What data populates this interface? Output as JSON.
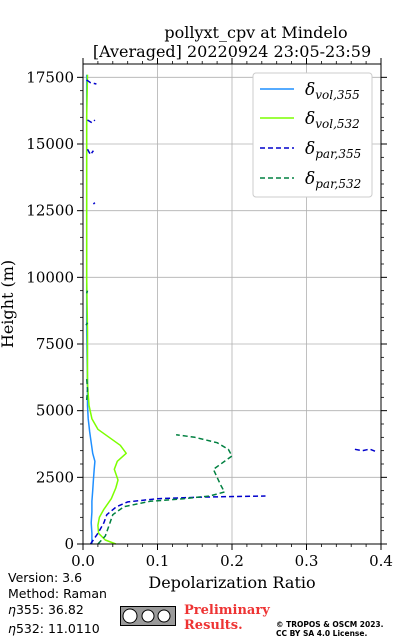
{
  "chart_data": {
    "type": "line",
    "title": "pollyxt_cpv at Mindelo",
    "subtitle": "[Averaged] 20220924 23:05-23:59",
    "xlabel": "Depolarization Ratio",
    "ylabel": "Height (m)",
    "xlim": [
      0.0,
      0.4
    ],
    "ylim": [
      0,
      18000
    ],
    "xticks": [
      "0.0",
      "0.1",
      "0.2",
      "0.3",
      "0.4"
    ],
    "yticks": [
      "0",
      "2500",
      "5000",
      "7500",
      "10000",
      "12500",
      "15000",
      "17500"
    ],
    "grid": true,
    "legend_position": "top-right",
    "legend": [
      {
        "label_base": "δ",
        "label_sub": "vol,355",
        "style": "solid",
        "color": "#1f8fff"
      },
      {
        "label_base": "δ",
        "label_sub": "vol,532",
        "style": "solid",
        "color": "#7cff00"
      },
      {
        "label_base": "δ",
        "label_sub": "par,355",
        "style": "dashed",
        "color": "#0000cc"
      },
      {
        "label_base": "δ",
        "label_sub": "par,532",
        "style": "dashed",
        "color": "#008040"
      }
    ],
    "series": [
      {
        "key": "vol355",
        "points": [
          [
            0.012,
            0
          ],
          [
            0.012,
            400
          ],
          [
            0.011,
            800
          ],
          [
            0.012,
            1200
          ],
          [
            0.012,
            1600
          ],
          [
            0.013,
            2000
          ],
          [
            0.014,
            2400
          ],
          [
            0.015,
            2800
          ],
          [
            0.016,
            3100
          ],
          [
            0.013,
            3400
          ],
          [
            0.011,
            3800
          ],
          [
            0.009,
            4200
          ],
          [
            0.007,
            4700
          ],
          [
            0.006,
            5200
          ],
          [
            0.006,
            6000
          ],
          [
            0.005,
            8000
          ],
          [
            0.005,
            10000
          ],
          [
            0.005,
            12000
          ],
          [
            0.005,
            14000
          ],
          [
            0.005,
            16000
          ],
          [
            0.005,
            17600
          ]
        ]
      },
      {
        "key": "vol532",
        "points": [
          [
            0.044,
            0
          ],
          [
            0.03,
            150
          ],
          [
            0.021,
            400
          ],
          [
            0.02,
            700
          ],
          [
            0.022,
            1000
          ],
          [
            0.028,
            1300
          ],
          [
            0.038,
            1700
          ],
          [
            0.044,
            2100
          ],
          [
            0.047,
            2400
          ],
          [
            0.042,
            2800
          ],
          [
            0.046,
            3100
          ],
          [
            0.058,
            3400
          ],
          [
            0.05,
            3700
          ],
          [
            0.035,
            4000
          ],
          [
            0.02,
            4300
          ],
          [
            0.012,
            4700
          ],
          [
            0.008,
            5200
          ],
          [
            0.006,
            6000
          ],
          [
            0.006,
            8000
          ],
          [
            0.005,
            10000
          ],
          [
            0.005,
            12000
          ],
          [
            0.005,
            14000
          ],
          [
            0.005,
            16000
          ],
          [
            0.006,
            17600
          ]
        ]
      },
      {
        "key": "par355",
        "segments": [
          [
            [
              0.01,
              0
            ],
            [
              0.02,
              400
            ],
            [
              0.028,
              800
            ],
            [
              0.032,
              1100
            ],
            [
              0.045,
              1400
            ],
            [
              0.06,
              1580
            ],
            [
              0.1,
              1700
            ],
            [
              0.16,
              1760
            ],
            [
              0.245,
              1800
            ]
          ],
          [
            [
              0.365,
              3550
            ],
            [
              0.375,
              3500
            ],
            [
              0.385,
              3560
            ],
            [
              0.392,
              3480
            ]
          ],
          [
            [
              0.005,
              17400
            ],
            [
              0.01,
              17300
            ],
            [
              0.018,
              17250
            ]
          ],
          [
            [
              0.006,
              15900
            ],
            [
              0.012,
              15800
            ],
            [
              0.016,
              15900
            ]
          ],
          [
            [
              0.006,
              14800
            ],
            [
              0.01,
              14600
            ],
            [
              0.014,
              14750
            ]
          ],
          [
            [
              0.014,
              12750
            ],
            [
              0.016,
              12800
            ]
          ]
        ]
      },
      {
        "key": "par532",
        "segments": [
          [
            [
              0.02,
              0
            ],
            [
              0.03,
              300
            ],
            [
              0.035,
              700
            ],
            [
              0.04,
              1100
            ],
            [
              0.055,
              1400
            ],
            [
              0.09,
              1600
            ],
            [
              0.135,
              1700
            ],
            [
              0.17,
              1800
            ],
            [
              0.19,
              1950
            ],
            [
              0.185,
              2200
            ],
            [
              0.18,
              2500
            ],
            [
              0.175,
              2800
            ],
            [
              0.185,
              3000
            ],
            [
              0.2,
              3300
            ],
            [
              0.195,
              3550
            ],
            [
              0.18,
              3800
            ],
            [
              0.15,
              4000
            ],
            [
              0.125,
              4100
            ]
          ],
          [
            [
              0.005,
              5400
            ],
            [
              0.006,
              5800
            ],
            [
              0.005,
              6200
            ]
          ],
          [
            [
              0.004,
              8200
            ],
            [
              0.006,
              8300
            ]
          ],
          [
            [
              0.005,
              9400
            ],
            [
              0.006,
              9500
            ]
          ]
        ]
      }
    ]
  },
  "footer": {
    "version": "Version: 3.6",
    "method": "Method: Raman",
    "eta355_label": "355:  36.82",
    "eta532_label": "532: 11.0110",
    "preliminary_line1": "Preliminary",
    "preliminary_line2": "Results.",
    "copyright_line1": "© TROPOS & OSCM 2023.",
    "copyright_line2": "CC BY SA 4.0 License."
  }
}
